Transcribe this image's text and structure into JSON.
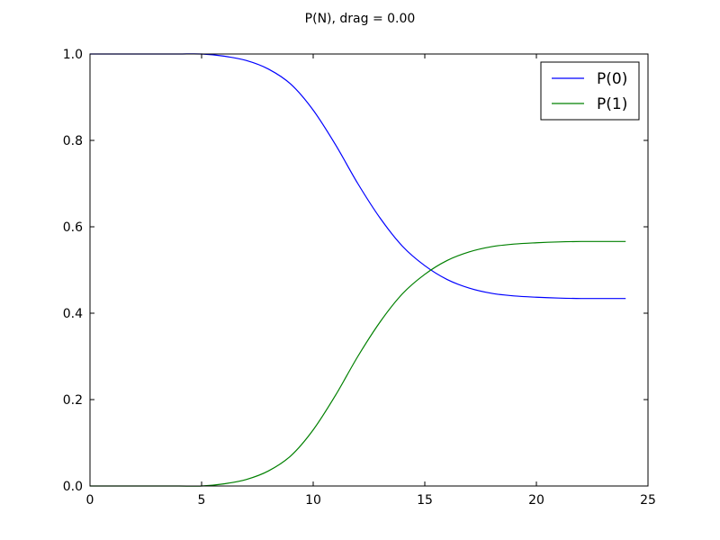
{
  "chart_data": {
    "type": "line",
    "title": "P(N), drag = 0.00",
    "xlabel": "",
    "ylabel": "",
    "xlim": [
      0,
      25
    ],
    "ylim": [
      0.0,
      1.0
    ],
    "xticks": [
      0,
      5,
      10,
      15,
      20,
      25
    ],
    "xtick_labels": [
      "0",
      "5",
      "10",
      "15",
      "20",
      "25"
    ],
    "yticks": [
      0.0,
      0.2,
      0.4,
      0.6,
      0.8,
      1.0
    ],
    "ytick_labels": [
      "0.0",
      "0.2",
      "0.4",
      "0.6",
      "0.8",
      "1.0"
    ],
    "grid": false,
    "legend_position": "top-right",
    "x": [
      0,
      1,
      2,
      3,
      4,
      5,
      6,
      7,
      8,
      9,
      10,
      11,
      12,
      13,
      14,
      15,
      16,
      17,
      18,
      19,
      20,
      21,
      22,
      23,
      24
    ],
    "series": [
      {
        "name": "P(0)",
        "color": "#0000ff",
        "values": [
          1.0,
          1.0,
          1.0,
          1.0,
          1.0,
          1.0,
          0.995,
          0.985,
          0.965,
          0.93,
          0.87,
          0.79,
          0.7,
          0.62,
          0.555,
          0.51,
          0.478,
          0.458,
          0.446,
          0.44,
          0.437,
          0.435,
          0.434,
          0.434,
          0.434
        ]
      },
      {
        "name": "P(1)",
        "color": "#008000",
        "values": [
          0.0,
          0.0,
          0.0,
          0.0,
          0.0,
          0.0,
          0.005,
          0.015,
          0.035,
          0.07,
          0.13,
          0.21,
          0.3,
          0.38,
          0.445,
          0.49,
          0.522,
          0.542,
          0.554,
          0.56,
          0.563,
          0.565,
          0.566,
          0.566,
          0.566
        ]
      }
    ]
  }
}
